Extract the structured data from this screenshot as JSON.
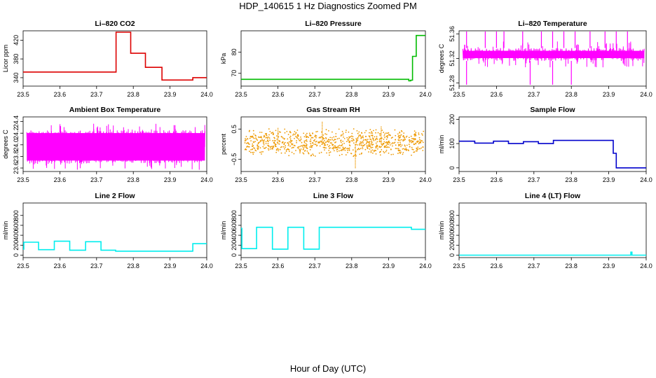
{
  "title": "HDP_140615  1 Hz Diagnostics Zoomed PM",
  "xlabel": "Hour of Day (UTC)",
  "chart_data": [
    {
      "type": "line",
      "title": "Li–820 CO2",
      "ylabel": "Licor ppm",
      "color": "#dd0000",
      "xlim": [
        23.5,
        24.0
      ],
      "ylim": [
        322,
        440
      ],
      "x_ticks": [
        "23.5",
        "23.6",
        "23.7",
        "23.8",
        "23.9",
        "24.0"
      ],
      "y_ticks": [
        "340",
        "380",
        "420"
      ],
      "style": "step",
      "x": [
        23.5,
        23.75,
        23.753,
        23.79,
        23.793,
        23.83,
        23.833,
        23.875,
        23.878,
        23.96,
        23.962,
        24.0
      ],
      "y": [
        352,
        352,
        437,
        437,
        392,
        392,
        362,
        362,
        335,
        335,
        340,
        340
      ]
    },
    {
      "type": "line",
      "title": "Li–820 Pressure",
      "ylabel": "kPa",
      "color": "#00bb00",
      "xlim": [
        23.5,
        24.0
      ],
      "ylim": [
        64,
        90
      ],
      "x_ticks": [
        "23.5",
        "23.6",
        "23.7",
        "23.8",
        "23.9",
        "24.0"
      ],
      "y_ticks": [
        "70",
        "80"
      ],
      "style": "step",
      "x": [
        23.5,
        23.95,
        23.955,
        23.96,
        23.965,
        23.975,
        24.0
      ],
      "y": [
        67.2,
        67.2,
        66.5,
        66.8,
        78,
        87.8,
        87.8
      ]
    },
    {
      "type": "line",
      "title": "Li–820 Temperature",
      "ylabel": "degrees C",
      "color": "#ff00ff",
      "xlim": [
        23.5,
        24.0
      ],
      "ylim": [
        51.275,
        51.365
      ],
      "x_ticks": [
        "23.5",
        "23.6",
        "23.7",
        "23.8",
        "23.9",
        "24.0"
      ],
      "y_ticks": [
        "51.28",
        "51.32",
        "51.36"
      ],
      "style": "noise",
      "band_low": 51.316,
      "band_high": 51.337,
      "spikes_up": [
        23.52,
        23.57,
        23.6,
        23.62,
        23.67,
        23.72,
        23.75,
        23.78,
        23.81,
        23.85,
        23.89,
        23.92,
        23.95
      ],
      "spikes_down": [
        23.52,
        23.69,
        23.75,
        23.8
      ]
    },
    {
      "type": "line",
      "title": "Ambient Box Temperature",
      "ylabel": "degrees C",
      "color": "#ff00ff",
      "xlim": [
        23.5,
        24.0
      ],
      "ylim": [
        23.54,
        24.48
      ],
      "x_ticks": [
        "23.5",
        "23.6",
        "23.7",
        "23.8",
        "23.9",
        "24.0"
      ],
      "y_ticks": [
        "23.6",
        "23.8",
        "24.0",
        "24.2",
        "24.4"
      ],
      "style": "noise",
      "band_low": 23.68,
      "band_high": 24.25
    },
    {
      "type": "scatter",
      "title": "Gas Stream RH",
      "ylabel": "percent",
      "color": "#ee9900",
      "xlim": [
        23.5,
        24.0
      ],
      "ylim": [
        -0.9,
        0.9
      ],
      "x_ticks": [
        "23.5",
        "23.6",
        "23.7",
        "23.8",
        "23.9",
        "24.0"
      ],
      "y_ticks": [
        "−0.5",
        "0.5"
      ],
      "style": "noise",
      "band_low": -0.25,
      "band_high": 0.45
    },
    {
      "type": "line",
      "title": "Sample Flow",
      "ylabel": "ml/min",
      "color": "#0000cc",
      "xlim": [
        23.5,
        24.0
      ],
      "ylim": [
        -15,
        210
      ],
      "x_ticks": [
        "23.5",
        "23.6",
        "23.7",
        "23.8",
        "23.9",
        "24.0"
      ],
      "y_ticks": [
        "0",
        "100",
        "200"
      ],
      "style": "step",
      "x": [
        23.5,
        23.54,
        23.542,
        23.59,
        23.592,
        23.63,
        23.632,
        23.67,
        23.672,
        23.71,
        23.712,
        23.75,
        23.752,
        23.91,
        23.912,
        23.92,
        24.0
      ],
      "y": [
        110,
        110,
        102,
        102,
        110,
        110,
        100,
        100,
        108,
        108,
        100,
        100,
        113,
        113,
        60,
        0,
        0
      ]
    },
    {
      "type": "line",
      "title": "Line 2 Flow",
      "ylabel": "ml/min",
      "color": "#00eeee",
      "xlim": [
        23.5,
        24.0
      ],
      "ylim": [
        -50,
        1050
      ],
      "x_ticks": [
        "23.5",
        "23.6",
        "23.7",
        "23.8",
        "23.9",
        "24.0"
      ],
      "y_ticks": [
        "0",
        "200",
        "400",
        "600",
        "800"
      ],
      "style": "step",
      "x": [
        23.5,
        23.502,
        23.54,
        23.542,
        23.583,
        23.585,
        23.625,
        23.627,
        23.668,
        23.67,
        23.71,
        23.712,
        23.75,
        23.752,
        23.96,
        23.962,
        24.0
      ],
      "y": [
        120,
        260,
        260,
        110,
        110,
        280,
        280,
        100,
        100,
        270,
        270,
        100,
        100,
        80,
        80,
        230,
        230
      ]
    },
    {
      "type": "line",
      "title": "Line 3 Flow",
      "ylabel": "ml/min",
      "color": "#00eeee",
      "xlim": [
        23.5,
        24.0
      ],
      "ylim": [
        -50,
        1050
      ],
      "x_ticks": [
        "23.5",
        "23.6",
        "23.7",
        "23.8",
        "23.9",
        "24.0"
      ],
      "y_ticks": [
        "0",
        "200",
        "400",
        "600",
        "800"
      ],
      "style": "step",
      "x": [
        23.5,
        23.502,
        23.54,
        23.542,
        23.583,
        23.585,
        23.625,
        23.627,
        23.668,
        23.67,
        23.71,
        23.712,
        23.96,
        23.962,
        24.0
      ],
      "y": [
        540,
        130,
        130,
        560,
        560,
        120,
        120,
        560,
        560,
        120,
        120,
        560,
        560,
        520,
        520
      ]
    },
    {
      "type": "line",
      "title": "Line 4 (LT) Flow",
      "ylabel": "ml/min",
      "color": "#00eeee",
      "xlim": [
        23.5,
        24.0
      ],
      "ylim": [
        -50,
        1050
      ],
      "x_ticks": [
        "23.5",
        "23.6",
        "23.7",
        "23.8",
        "23.9",
        "24.0"
      ],
      "y_ticks": [
        "0",
        "200",
        "400",
        "600",
        "800"
      ],
      "style": "step",
      "x": [
        23.5,
        23.958,
        23.959,
        23.961,
        23.962,
        24.0
      ],
      "y": [
        0,
        0,
        60,
        60,
        0,
        0
      ]
    }
  ]
}
